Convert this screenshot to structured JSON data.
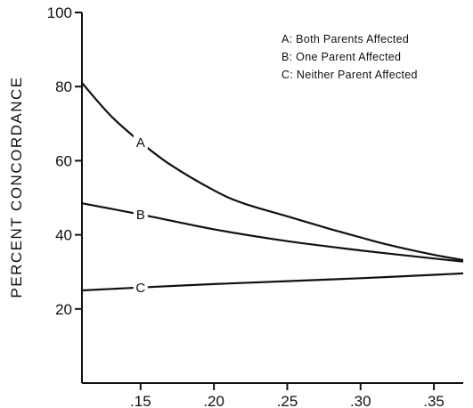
{
  "chart_data": {
    "type": "line",
    "title": "",
    "xlabel": "",
    "ylabel": "PERCENT CONCORDANCE",
    "xlim": [
      0.11,
      0.37
    ],
    "ylim": [
      0,
      100
    ],
    "x_ticks": [
      {
        "value": 0.15,
        "label": ".15"
      },
      {
        "value": 0.2,
        "label": ".20"
      },
      {
        "value": 0.25,
        "label": ".25"
      },
      {
        "value": 0.3,
        "label": ".30"
      },
      {
        "value": 0.35,
        "label": ".35"
      }
    ],
    "y_ticks": [
      {
        "value": 20,
        "label": "20"
      },
      {
        "value": 40,
        "label": "40"
      },
      {
        "value": 60,
        "label": "60"
      },
      {
        "value": 80,
        "label": "80"
      },
      {
        "value": 100,
        "label": "100"
      }
    ],
    "grid": false,
    "legend_position": "top-right",
    "legend": [
      "A: Both Parents Affected",
      "B: One Parent Affected",
      "C: Neither Parent Affected"
    ],
    "series": [
      {
        "label": "A",
        "label_at_x": 0.15,
        "x": [
          0.11,
          0.13,
          0.15,
          0.17,
          0.2,
          0.22,
          0.25,
          0.28,
          0.3,
          0.32,
          0.35,
          0.37
        ],
        "y": [
          81,
          72,
          65,
          59,
          52,
          48.5,
          45,
          41.5,
          39.3,
          37.2,
          34.6,
          33.2
        ]
      },
      {
        "label": "B",
        "label_at_x": 0.15,
        "x": [
          0.11,
          0.15,
          0.2,
          0.25,
          0.3,
          0.35,
          0.37
        ],
        "y": [
          48.5,
          45.5,
          41.5,
          38.3,
          35.8,
          33.6,
          32.8
        ]
      },
      {
        "label": "C",
        "label_at_x": 0.15,
        "x": [
          0.11,
          0.15,
          0.2,
          0.25,
          0.3,
          0.35,
          0.37
        ],
        "y": [
          25,
          25.8,
          26.7,
          27.5,
          28.3,
          29.2,
          29.6
        ]
      }
    ]
  }
}
